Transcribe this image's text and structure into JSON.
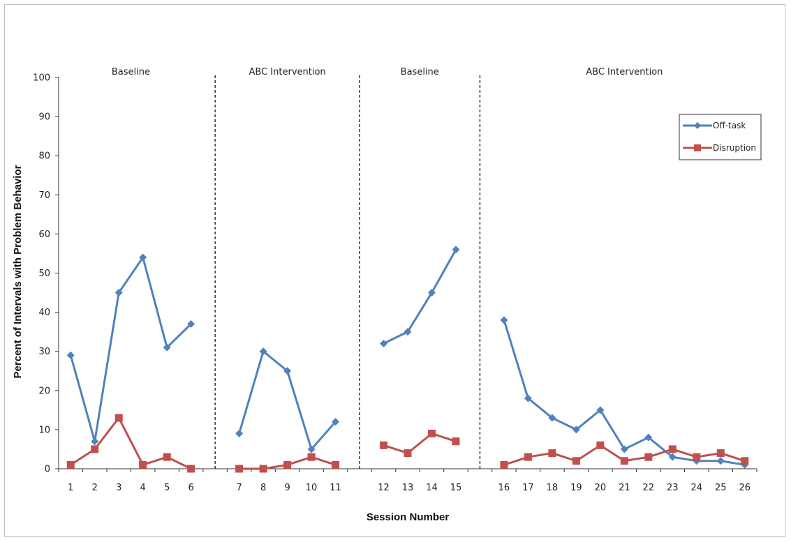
{
  "chart_data": {
    "type": "line",
    "title": "",
    "xlabel": "Session Number",
    "ylabel": "Percent of Intervals with Problem Behavior",
    "ylim": [
      0,
      100
    ],
    "yticks": [
      0,
      10,
      20,
      30,
      40,
      50,
      60,
      70,
      80,
      90,
      100
    ],
    "grid": false,
    "legend_position": "top-right",
    "phases": [
      {
        "label": "Baseline",
        "sessions": [
          1,
          2,
          3,
          4,
          5,
          6
        ]
      },
      {
        "label": "ABC Intervention",
        "sessions": [
          7,
          8,
          9,
          10,
          11
        ]
      },
      {
        "label": "Baseline",
        "sessions": [
          12,
          13,
          14,
          15
        ]
      },
      {
        "label": "ABC Intervention",
        "sessions": [
          16,
          17,
          18,
          19,
          20,
          21,
          22,
          23,
          24,
          25,
          26
        ]
      }
    ],
    "series": [
      {
        "name": "Off-task",
        "color": "#4f81bd",
        "marker": "diamond",
        "phase_values": [
          [
            29,
            7,
            45,
            54,
            31,
            37
          ],
          [
            9,
            30,
            25,
            5,
            12
          ],
          [
            32,
            35,
            45,
            56
          ],
          [
            38,
            18,
            13,
            10,
            15,
            5,
            8,
            3,
            2,
            2,
            1
          ]
        ]
      },
      {
        "name": "Disruption",
        "color": "#c0504d",
        "marker": "square",
        "phase_values": [
          [
            1,
            5,
            13,
            1,
            3,
            0
          ],
          [
            0,
            0,
            1,
            3,
            1
          ],
          [
            6,
            4,
            9,
            7
          ],
          [
            1,
            3,
            4,
            2,
            6,
            2,
            3,
            5,
            3,
            4,
            2
          ]
        ]
      }
    ]
  }
}
